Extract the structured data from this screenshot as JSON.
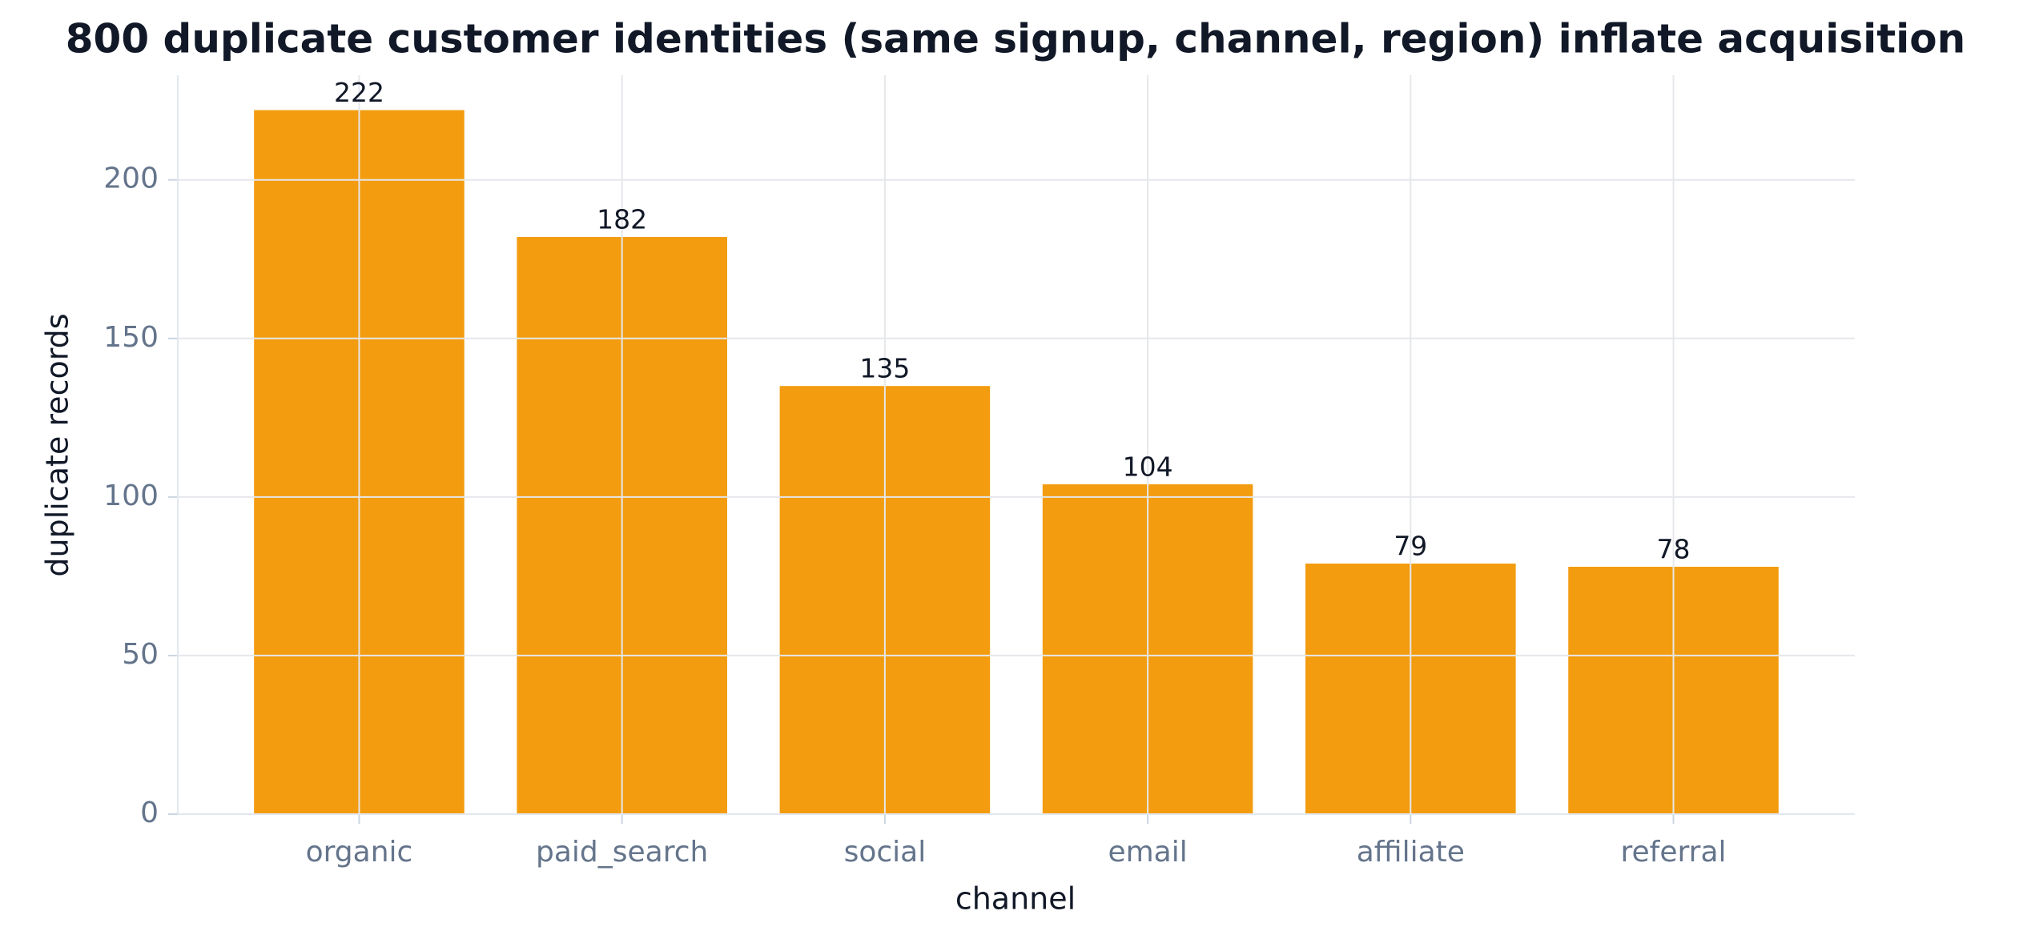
{
  "chart_data": {
    "type": "bar",
    "title": "800 duplicate customer identities (same signup, channel, region) inflate acquisition",
    "x_label": "channel",
    "y_label": "duplicate records",
    "categories": [
      "organic",
      "paid_search",
      "social",
      "email",
      "affiliate",
      "referral"
    ],
    "values": [
      222,
      182,
      135,
      104,
      79,
      78
    ],
    "color": "#f39c0f",
    "ylim": [
      0,
      233
    ],
    "yticks": [
      0,
      50,
      100,
      150,
      200
    ],
    "grid": true
  }
}
